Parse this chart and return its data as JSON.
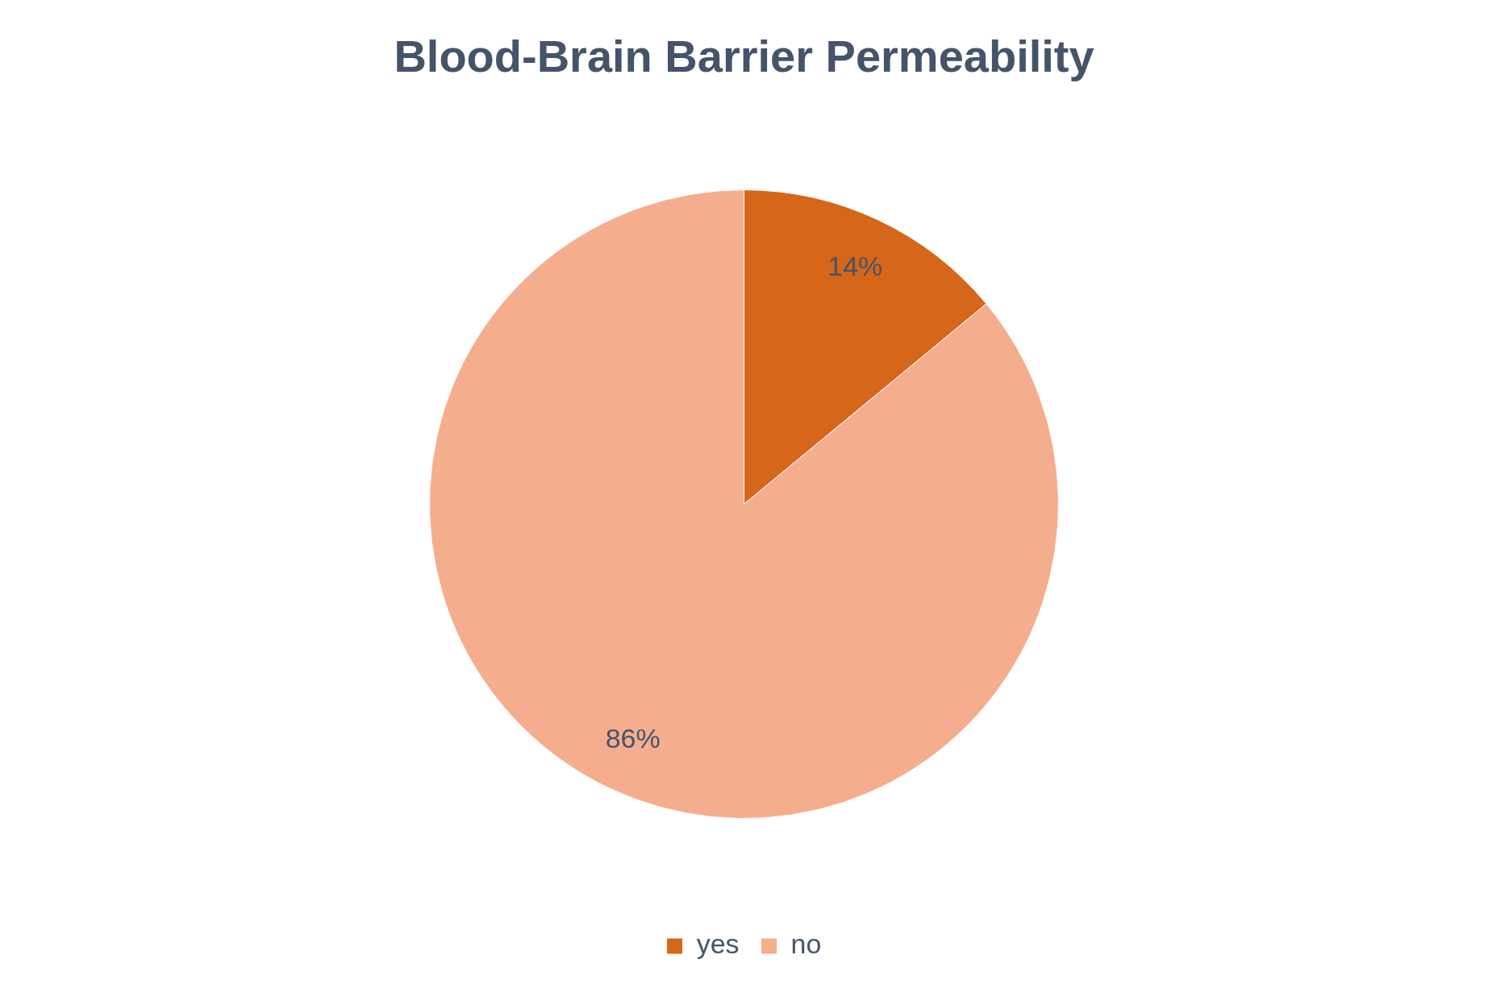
{
  "chart_data": {
    "type": "pie",
    "title": "Blood-Brain Barrier Permeability",
    "categories": [
      "yes",
      "no"
    ],
    "values": [
      14,
      86
    ],
    "colors": [
      "#d5661a",
      "#f4ad8d"
    ],
    "value_labels": [
      "14%",
      "86%"
    ],
    "legend": "bottom"
  }
}
